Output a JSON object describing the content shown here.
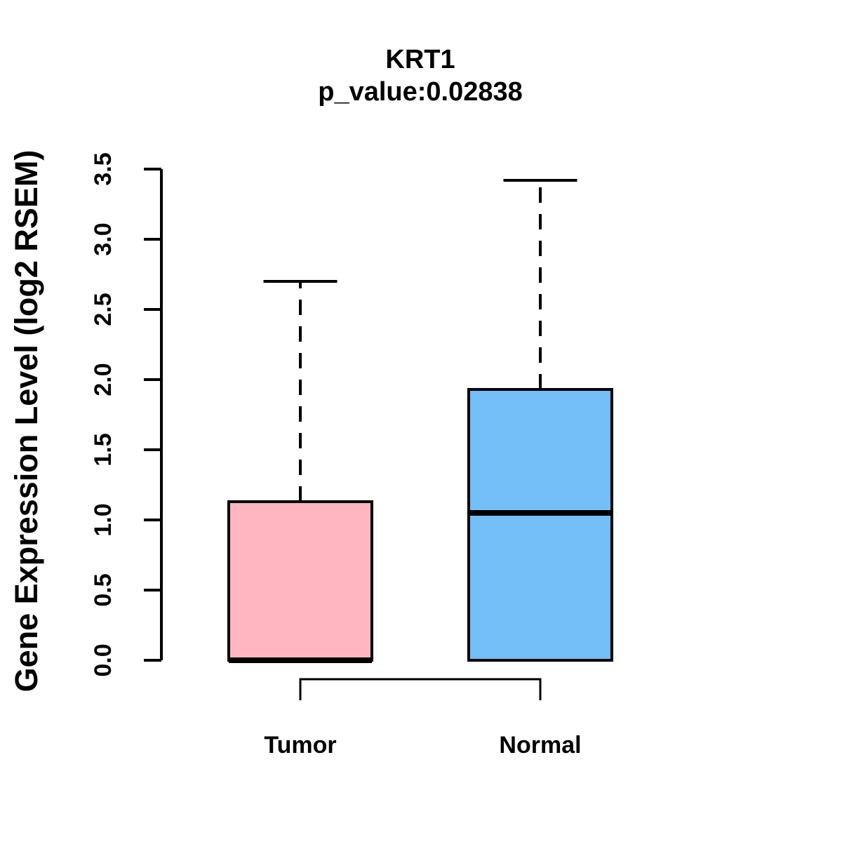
{
  "chart_data": {
    "type": "boxplot",
    "title": "KRT1",
    "subtitle": "p_value:0.02838",
    "p_value": 0.02838,
    "ylabel": "Gene Expression Level (log2 RSEM)",
    "ylim": [
      0.0,
      3.5
    ],
    "grid": false,
    "yticks": [
      {
        "value": 0.0,
        "label": "0.0"
      },
      {
        "value": 0.5,
        "label": "0.5"
      },
      {
        "value": 1.0,
        "label": "1.0"
      },
      {
        "value": 1.5,
        "label": "1.5"
      },
      {
        "value": 2.0,
        "label": "2.0"
      },
      {
        "value": 2.5,
        "label": "2.5"
      },
      {
        "value": 3.0,
        "label": "3.0"
      },
      {
        "value": 3.5,
        "label": "3.5"
      }
    ],
    "groups": [
      {
        "label": "Tumor",
        "color": "#FFB6C1",
        "whisker_low": 0.0,
        "q1": 0.0,
        "median": 0.0,
        "q3": 1.13,
        "whisker_high": 2.7
      },
      {
        "label": "Normal",
        "color": "#74BFF7",
        "whisker_low": 0.0,
        "q1": 0.0,
        "median": 1.05,
        "q3": 1.93,
        "whisker_high": 3.42
      }
    ],
    "comparison_bracket": {
      "connects": [
        "Tumor",
        "Normal"
      ]
    },
    "colors": {
      "stroke": "#000000",
      "background": "#ffffff"
    }
  }
}
